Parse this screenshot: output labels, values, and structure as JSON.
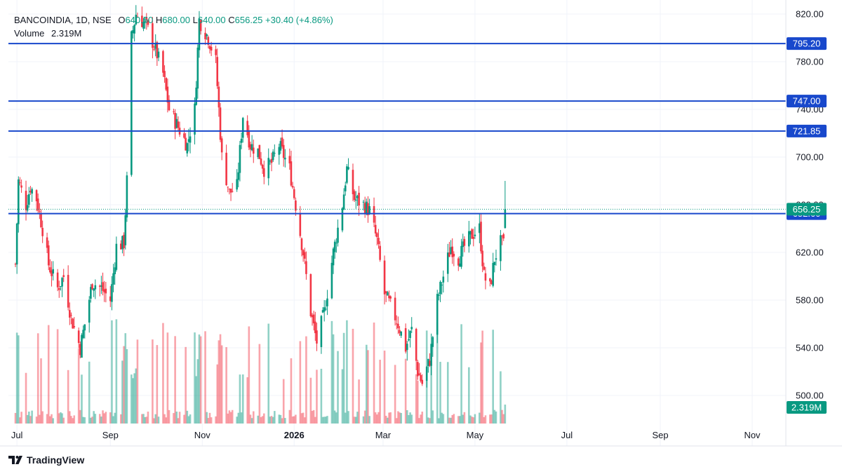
{
  "header": {
    "symbol": "BANCOINDIA, 1D, NSE",
    "open_label": "O",
    "open_value": "640.50",
    "high_label": "H",
    "high_value": "680.00",
    "low_label": "L",
    "low_value": "640.00",
    "close_label": "C",
    "close_value": "656.25",
    "change": "+30.40 (+4.86%)",
    "volume_label": "Volume",
    "volume_value": "2.319M"
  },
  "brand": {
    "name": "TradingView",
    "logo_icon": "tradingview-logo-icon"
  },
  "colors": {
    "up": "#089981",
    "down": "#f23645",
    "level_line": "#1848cc",
    "grid": "#f0f3fa",
    "axis_text": "#131722"
  },
  "chart_data": {
    "type": "candlestick",
    "symbol": "BANCOINDIA",
    "interval": "1D",
    "exchange": "NSE",
    "y_axis": {
      "range": [
        486,
        824
      ],
      "ticks": [
        "820.00",
        "780.00",
        "740.00",
        "700.00",
        "660.00",
        "620.00",
        "580.00",
        "540.00",
        "500.00"
      ],
      "position": "right"
    },
    "x_axis": {
      "ticks": [
        "Jul",
        "Sep",
        "Nov",
        "2026",
        "Mar",
        "May",
        "Jul",
        "Sep",
        "Nov"
      ]
    },
    "grid": true,
    "horizontal_levels": [
      795.2,
      747.0,
      721.85,
      652.6
    ],
    "horizontal_level_labels": [
      "795.20",
      "747.00",
      "721.85",
      "652.60"
    ],
    "last_price": 656.25,
    "last_price_label": "656.25",
    "last_volume_label": "2.319M",
    "close_path": [
      {
        "date": "2025-06-30",
        "close": 610
      },
      {
        "date": "2025-07-02",
        "close": 680
      },
      {
        "date": "2025-07-07",
        "close": 660
      },
      {
        "date": "2025-07-10",
        "close": 675
      },
      {
        "date": "2025-07-14",
        "close": 665
      },
      {
        "date": "2025-07-18",
        "close": 640
      },
      {
        "date": "2025-07-22",
        "close": 610
      },
      {
        "date": "2025-07-28",
        "close": 590
      },
      {
        "date": "2025-08-01",
        "close": 600
      },
      {
        "date": "2025-08-06",
        "close": 565
      },
      {
        "date": "2025-08-12",
        "close": 540
      },
      {
        "date": "2025-08-15",
        "close": 560
      },
      {
        "date": "2025-08-20",
        "close": 595
      },
      {
        "date": "2025-08-26",
        "close": 590
      },
      {
        "date": "2025-09-01",
        "close": 580
      },
      {
        "date": "2025-09-05",
        "close": 625
      },
      {
        "date": "2025-09-10",
        "close": 628
      },
      {
        "date": "2025-09-12",
        "close": 680
      },
      {
        "date": "2025-09-15",
        "close": 800
      },
      {
        "date": "2025-09-18",
        "close": 820
      },
      {
        "date": "2025-09-25",
        "close": 810
      },
      {
        "date": "2025-10-01",
        "close": 790
      },
      {
        "date": "2025-10-06",
        "close": 770
      },
      {
        "date": "2025-10-10",
        "close": 740
      },
      {
        "date": "2025-10-16",
        "close": 725
      },
      {
        "date": "2025-10-22",
        "close": 710
      },
      {
        "date": "2025-10-27",
        "close": 740
      },
      {
        "date": "2025-10-30",
        "close": 815
      },
      {
        "date": "2025-11-05",
        "close": 800
      },
      {
        "date": "2025-11-10",
        "close": 780
      },
      {
        "date": "2025-11-14",
        "close": 700
      },
      {
        "date": "2025-11-19",
        "close": 670
      },
      {
        "date": "2025-11-24",
        "close": 675
      },
      {
        "date": "2025-11-28",
        "close": 735
      },
      {
        "date": "2025-12-03",
        "close": 710
      },
      {
        "date": "2025-12-08",
        "close": 705
      },
      {
        "date": "2025-12-12",
        "close": 690
      },
      {
        "date": "2025-12-17",
        "close": 695
      },
      {
        "date": "2025-12-22",
        "close": 710
      },
      {
        "date": "2025-12-29",
        "close": 690
      },
      {
        "date": "2026-01-02",
        "close": 660
      },
      {
        "date": "2026-01-07",
        "close": 620
      },
      {
        "date": "2026-01-12",
        "close": 570
      },
      {
        "date": "2026-01-16",
        "close": 545
      },
      {
        "date": "2026-01-21",
        "close": 570
      },
      {
        "date": "2026-01-27",
        "close": 620
      },
      {
        "date": "2026-02-02",
        "close": 660
      },
      {
        "date": "2026-02-05",
        "close": 690
      },
      {
        "date": "2026-02-10",
        "close": 665
      },
      {
        "date": "2026-02-16",
        "close": 660
      },
      {
        "date": "2026-02-20",
        "close": 655
      },
      {
        "date": "2026-02-25",
        "close": 630
      },
      {
        "date": "2026-03-02",
        "close": 585
      },
      {
        "date": "2026-03-06",
        "close": 575
      },
      {
        "date": "2026-03-11",
        "close": 560
      },
      {
        "date": "2026-03-16",
        "close": 540
      },
      {
        "date": "2026-03-20",
        "close": 555
      },
      {
        "date": "2026-03-24",
        "close": 520
      },
      {
        "date": "2026-03-27",
        "close": 510
      },
      {
        "date": "2026-04-01",
        "close": 530
      },
      {
        "date": "2026-04-06",
        "close": 580
      },
      {
        "date": "2026-04-10",
        "close": 600
      },
      {
        "date": "2026-04-15",
        "close": 625
      },
      {
        "date": "2026-04-20",
        "close": 615
      },
      {
        "date": "2026-04-24",
        "close": 625
      },
      {
        "date": "2026-04-29",
        "close": 635
      },
      {
        "date": "2026-05-04",
        "close": 640
      },
      {
        "date": "2026-05-07",
        "close": 600
      },
      {
        "date": "2026-05-11",
        "close": 590
      },
      {
        "date": "2026-05-14",
        "close": 615
      },
      {
        "date": "2026-05-18",
        "close": 628
      },
      {
        "date": "2026-05-20",
        "close": 626
      },
      {
        "date": "2026-05-21",
        "close": 656.25
      }
    ]
  }
}
